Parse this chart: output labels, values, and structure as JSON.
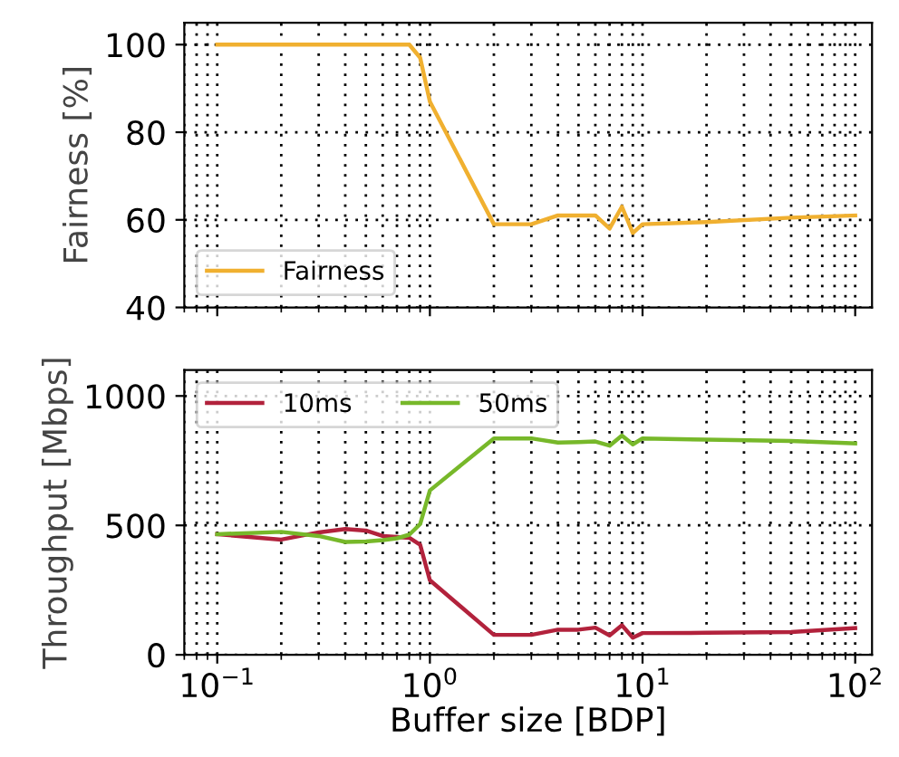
{
  "chart_data": [
    {
      "type": "line",
      "ylabel": "Fairness [%]",
      "log": "x",
      "grid": true,
      "legend": "bottom left",
      "tick_labels": "y",
      "xlim": [
        0.07,
        120
      ],
      "xticks": [
        {
          "value": 0.1,
          "label": null
        },
        {
          "value": 1,
          "label": null
        },
        {
          "value": 10,
          "label": null
        },
        {
          "value": 100,
          "label": null
        }
      ],
      "ylim": [
        40,
        105
      ],
      "yticks": [
        40,
        60,
        80,
        100
      ],
      "x": [
        0.1,
        0.2,
        0.3,
        0.4,
        0.5,
        0.6,
        0.7,
        0.8,
        0.9,
        1,
        2,
        3,
        4,
        5,
        6,
        7,
        8,
        9,
        10,
        20,
        50,
        100
      ],
      "series": [
        {
          "name": "Fairness",
          "color": "#f0b030",
          "values": [
            100,
            100,
            100,
            100,
            100,
            100,
            100,
            100,
            97,
            87,
            59,
            59,
            61,
            61,
            61,
            58,
            63,
            57,
            59,
            59.5,
            60.5,
            61
          ]
        }
      ]
    },
    {
      "type": "line",
      "xlabel": "Buffer size [BDP]",
      "ylabel": "Throughput [Mbps]",
      "log": "x",
      "grid": true,
      "legend": "top left",
      "xlim": [
        0.07,
        120
      ],
      "xticks": [
        {
          "value": 0.1,
          "label": "10$^{−1}$"
        },
        {
          "value": 1,
          "label": "10$^{0}$"
        },
        {
          "value": 10,
          "label": "10$^{1}$"
        },
        {
          "value": 100,
          "label": "10$^{2}$"
        }
      ],
      "ylim": [
        0,
        1100
      ],
      "yticks": [
        0,
        500,
        1000
      ],
      "x": [
        0.1,
        0.2,
        0.3,
        0.4,
        0.5,
        0.6,
        0.7,
        0.8,
        0.9,
        1,
        2,
        3,
        4,
        5,
        6,
        7,
        8,
        9,
        10,
        20,
        50,
        100
      ],
      "series": [
        {
          "name": "10ms",
          "color": "#b2223c",
          "values": [
            466,
            445,
            473,
            486,
            480,
            459,
            455,
            452,
            425,
            288,
            77,
            77,
            97,
            97,
            105,
            75,
            114,
            66,
            84,
            85,
            88,
            103
          ]
        },
        {
          "name": "50ms",
          "color": "#77b82a",
          "values": [
            466,
            475,
            459,
            436,
            438,
            443,
            450,
            464,
            505,
            635,
            836,
            836,
            820,
            822,
            824,
            808,
            847,
            813,
            836,
            831,
            826,
            817
          ]
        }
      ]
    }
  ]
}
